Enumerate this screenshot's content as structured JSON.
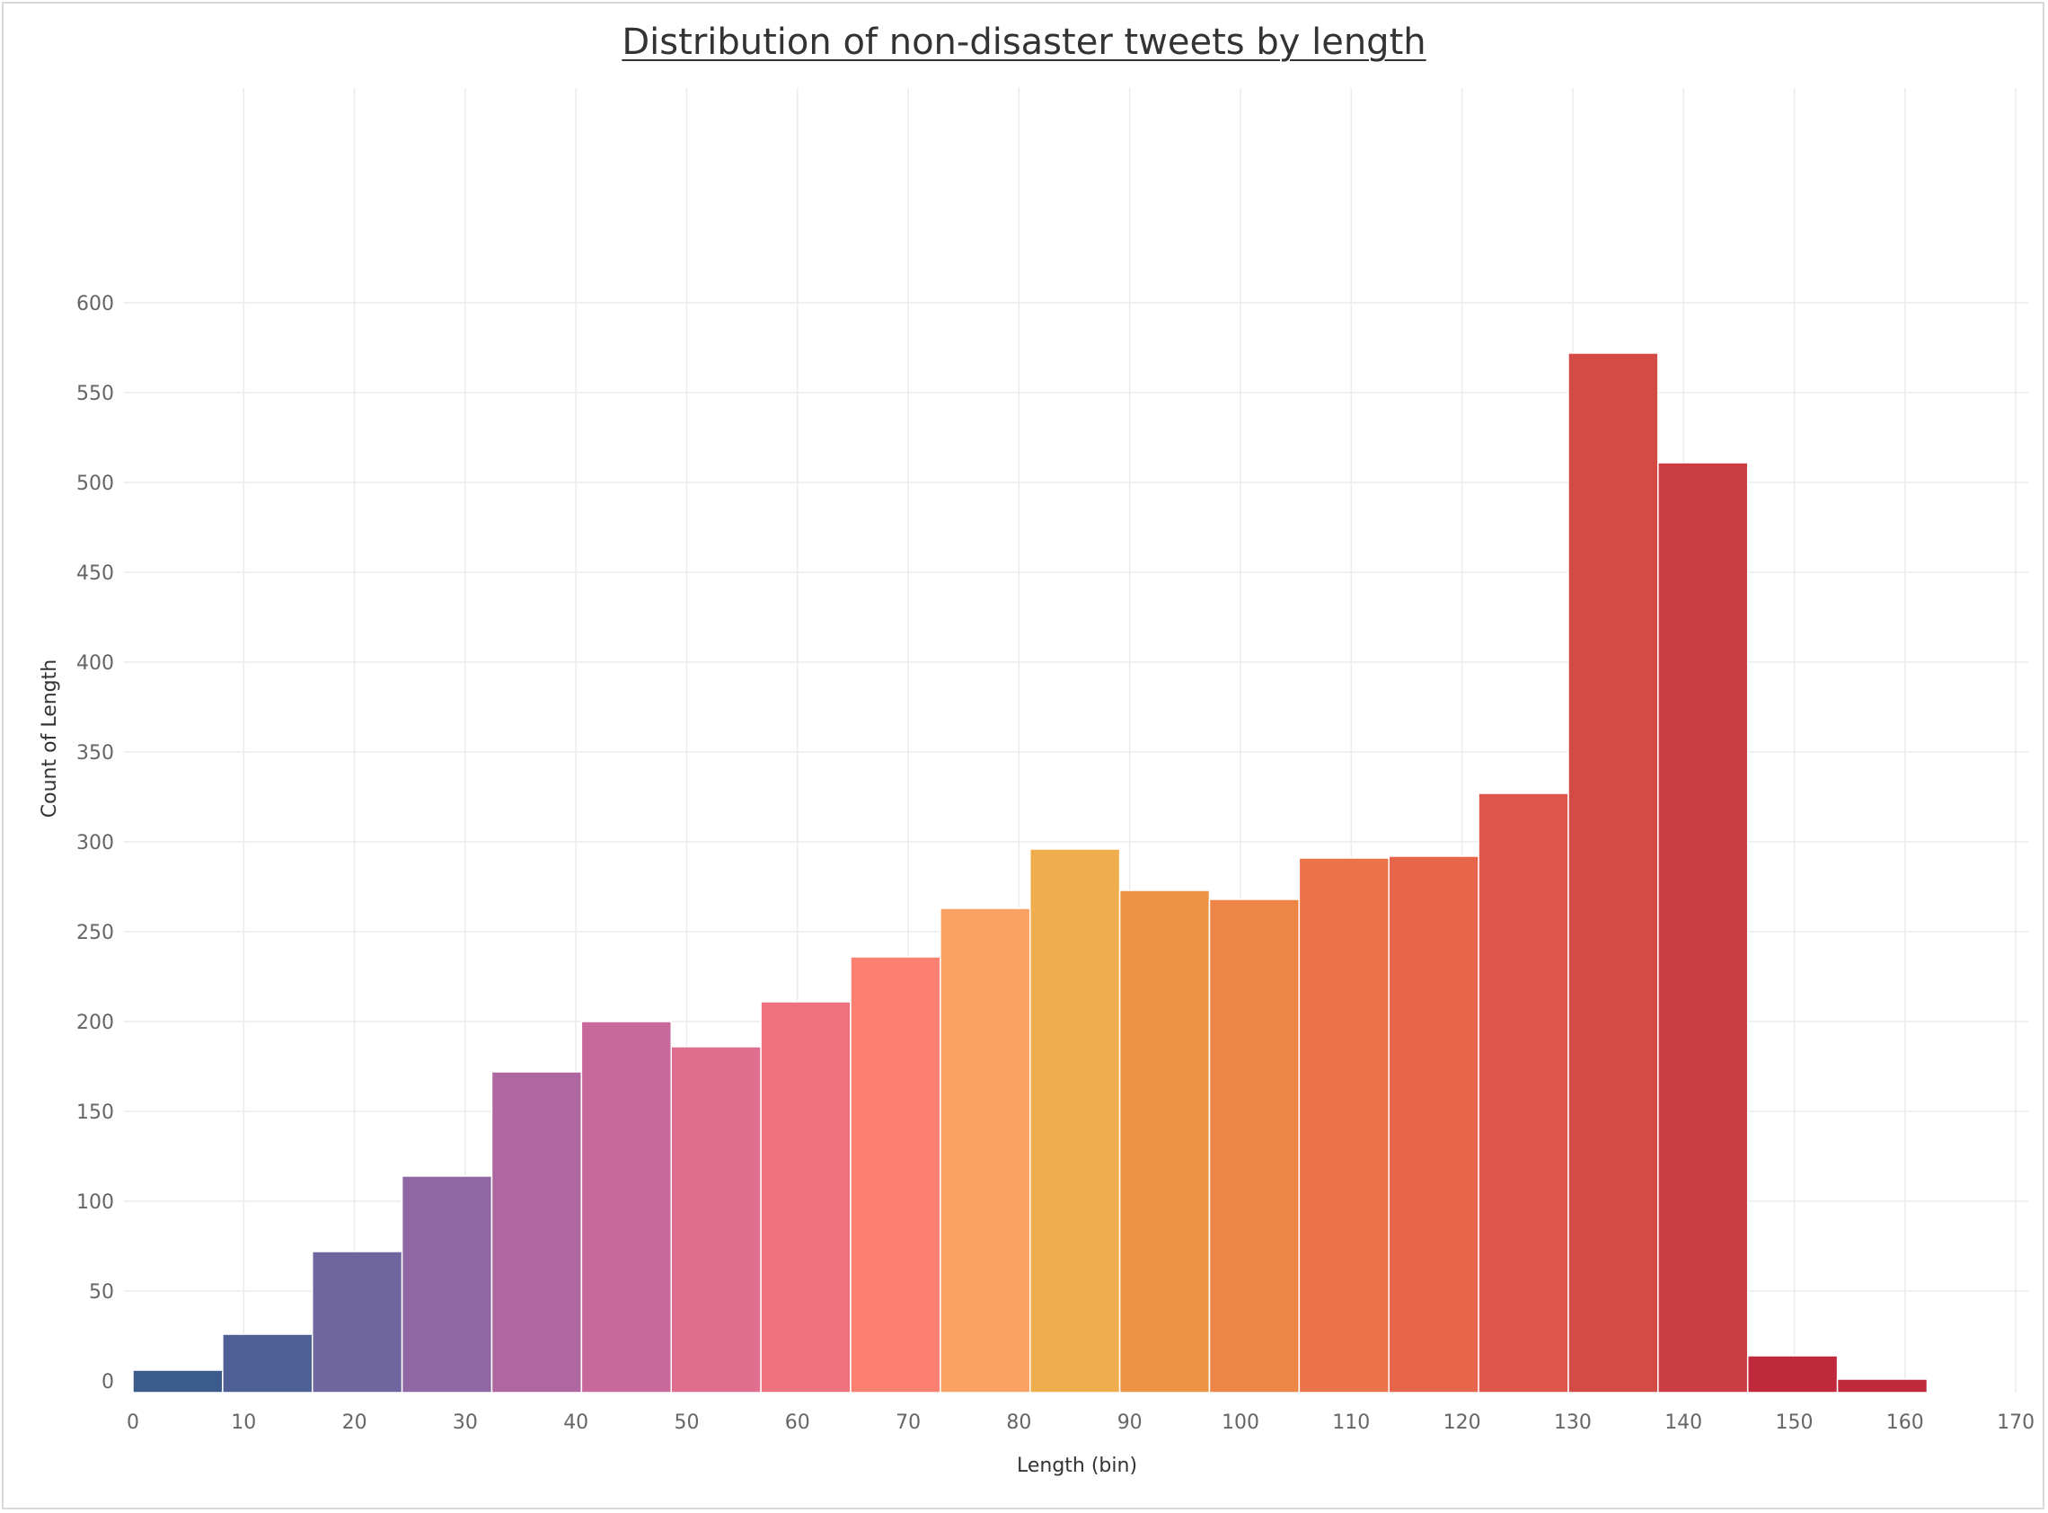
{
  "chart_data": {
    "type": "bar",
    "title": "Distribution of non-disaster tweets by length",
    "xlabel": "Length (bin)",
    "ylabel": "Count of Length",
    "bin_width": 8.1,
    "bins": [
      {
        "start": 0.0,
        "value": 6,
        "color": "#3b5b8c"
      },
      {
        "start": 8.1,
        "value": 26,
        "color": "#4f6096"
      },
      {
        "start": 16.2,
        "value": 72,
        "color": "#6f659f"
      },
      {
        "start": 24.3,
        "value": 114,
        "color": "#8e67a3"
      },
      {
        "start": 32.4,
        "value": 172,
        "color": "#af67a1"
      },
      {
        "start": 40.5,
        "value": 200,
        "color": "#c9689a"
      },
      {
        "start": 48.6,
        "value": 186,
        "color": "#e06e8f"
      },
      {
        "start": 56.7,
        "value": 211,
        "color": "#ee727e"
      },
      {
        "start": 64.8,
        "value": 236,
        "color": "#fb8072"
      },
      {
        "start": 72.9,
        "value": 263,
        "color": "#f9a262"
      },
      {
        "start": 81.0,
        "value": 296,
        "color": "#f0ad4e"
      },
      {
        "start": 89.1,
        "value": 273,
        "color": "#eb9446"
      },
      {
        "start": 97.2,
        "value": 268,
        "color": "#ec8546"
      },
      {
        "start": 105.3,
        "value": 291,
        "color": "#eb7349"
      },
      {
        "start": 113.4,
        "value": 292,
        "color": "#e6654b"
      },
      {
        "start": 121.5,
        "value": 327,
        "color": "#df574a"
      },
      {
        "start": 129.6,
        "value": 572,
        "color": "#d44a45"
      },
      {
        "start": 137.7,
        "value": 511,
        "color": "#c93d43"
      },
      {
        "start": 145.8,
        "value": 14,
        "color": "#c0283c"
      },
      {
        "start": 153.9,
        "value": 1,
        "color": "#c0283c"
      }
    ],
    "xticks": [
      0,
      10,
      20,
      30,
      40,
      50,
      60,
      70,
      80,
      90,
      100,
      110,
      120,
      130,
      140,
      150,
      160,
      170
    ],
    "yticks": [
      0,
      50,
      100,
      150,
      200,
      250,
      300,
      350,
      400,
      450,
      500,
      550,
      600
    ],
    "xlim": [
      0,
      170
    ],
    "ylim": [
      -6,
      600
    ],
    "grid": true,
    "colors": {
      "grid": "#ebebeb",
      "tick_text": "#666666",
      "title": "#333333",
      "bar_edge": "#ffffff"
    }
  }
}
